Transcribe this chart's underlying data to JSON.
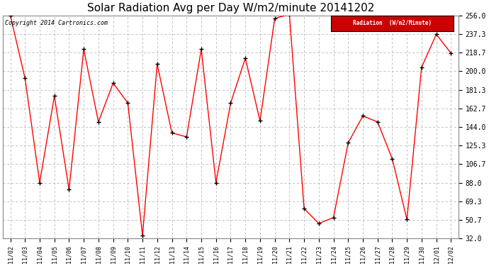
{
  "title": "Solar Radiation Avg per Day W/m2/minute 20141202",
  "copyright": "Copyright 2014 Cartronics.com",
  "legend_label": "Radiation  (W/m2/Minute)",
  "dates": [
    "11/02",
    "11/03",
    "11/04",
    "11/05",
    "11/06",
    "11/07",
    "11/08",
    "11/09",
    "11/10",
    "11/11",
    "11/12",
    "11/13",
    "11/14",
    "11/15",
    "11/16",
    "11/17",
    "11/18",
    "11/19",
    "11/20",
    "11/21",
    "11/22",
    "11/23",
    "11/24",
    "11/25",
    "11/26",
    "11/27",
    "11/28",
    "11/29",
    "11/30",
    "12/01",
    "12/02"
  ],
  "values": [
    256,
    193,
    88,
    175,
    81,
    222,
    149,
    188,
    168,
    35,
    207,
    138,
    134,
    222,
    88,
    168,
    213,
    150,
    253,
    257,
    62,
    47,
    53,
    128,
    155,
    149,
    112,
    51,
    204,
    237,
    218
  ],
  "line_color": "red",
  "marker_color": "black",
  "bg_color": "#ffffff",
  "grid_color": "#bbbbbb",
  "ylim": [
    32.0,
    256.0
  ],
  "yticks": [
    32.0,
    50.7,
    69.3,
    88.0,
    106.7,
    125.3,
    144.0,
    162.7,
    181.3,
    200.0,
    218.7,
    237.3,
    256.0
  ],
  "title_fontsize": 11,
  "legend_bg": "#cc0000",
  "legend_text_color": "#ffffff"
}
